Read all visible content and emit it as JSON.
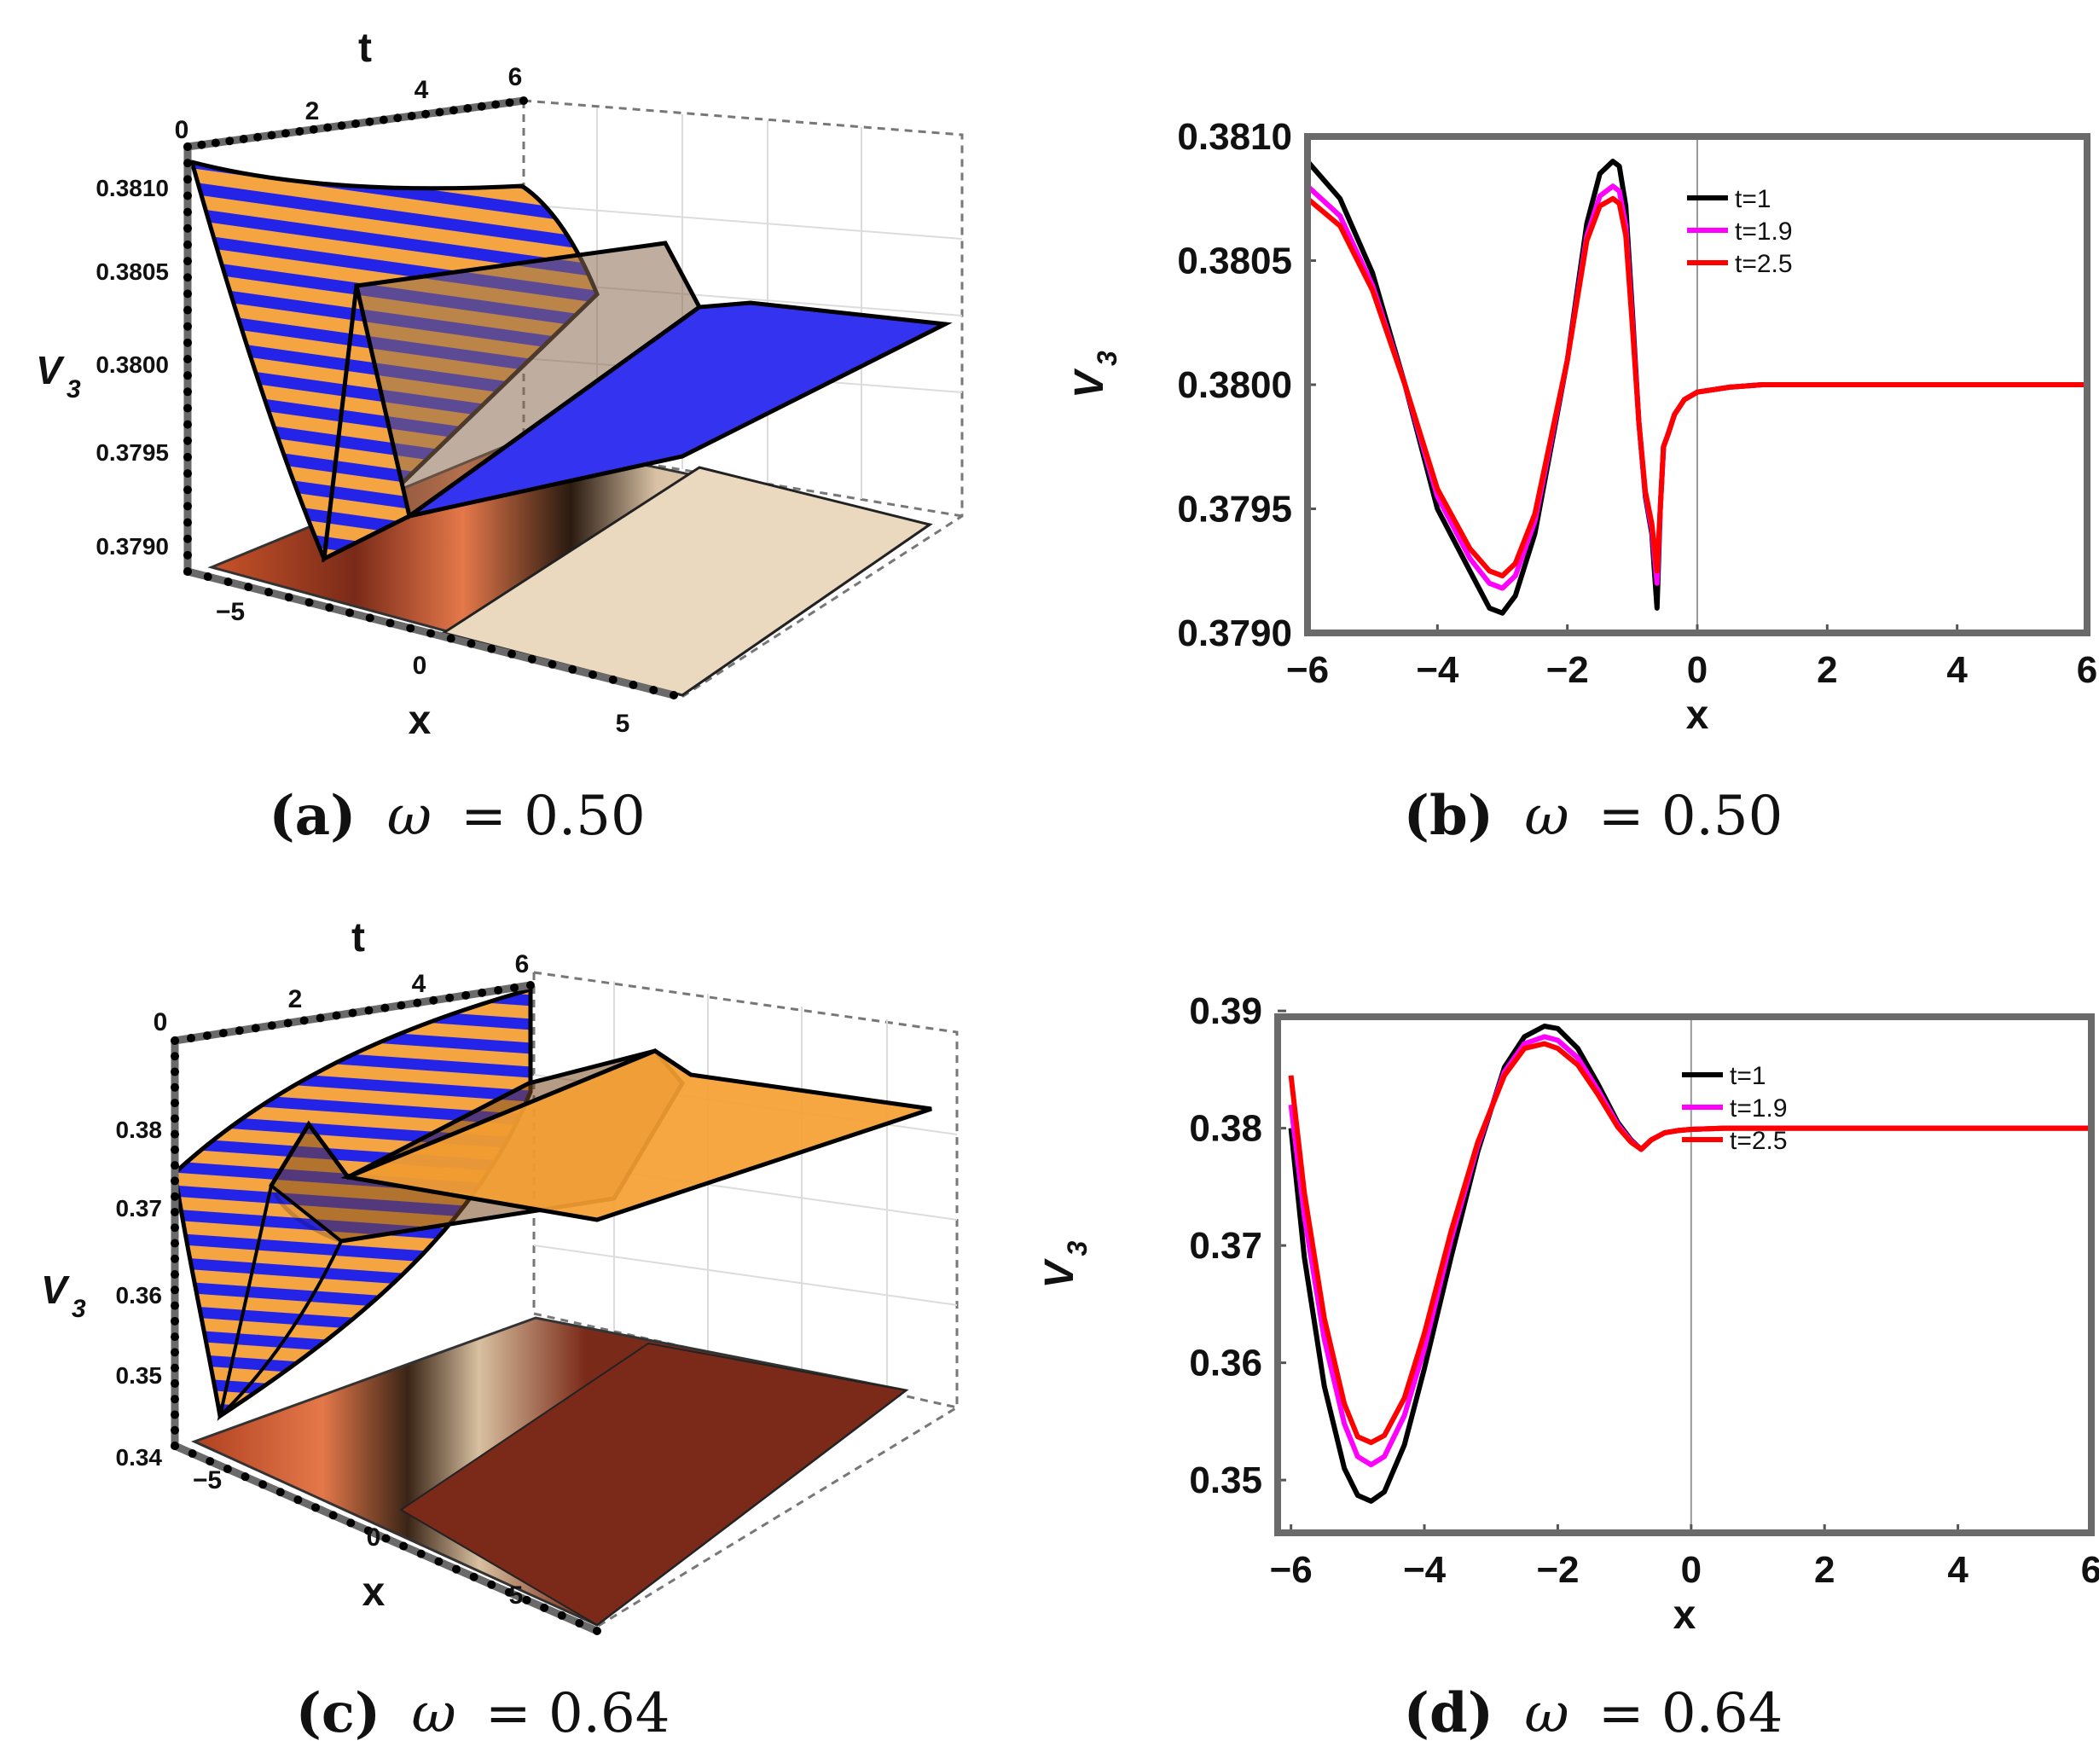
{
  "colors": {
    "t1": "#000000",
    "t19": "#ff00ff",
    "t25": "#ff0000",
    "stripe_orange": "#f5a442",
    "stripe_blue": "#2222ee",
    "frame": "#6a6a6a"
  },
  "captions": {
    "a": {
      "letter": "(a)",
      "omega": "ω",
      "eq": "= 0.50"
    },
    "b": {
      "letter": "(b)",
      "omega": "ω",
      "eq": "= 0.50"
    },
    "c": {
      "letter": "(c)",
      "omega": "ω",
      "eq": "= 0.64"
    },
    "d": {
      "letter": "(d)",
      "omega": "ω",
      "eq": "= 0.64"
    }
  },
  "panel_a": {
    "zlabel": "V",
    "zsub": "3",
    "xlabel": "x",
    "tlabel": "t",
    "zticks": [
      "0.3810",
      "0.3805",
      "0.3800",
      "0.3795",
      "0.3790"
    ],
    "xticks": [
      "−5",
      "0",
      "5"
    ],
    "tticks": [
      "0",
      "2",
      "4",
      "6"
    ]
  },
  "panel_c": {
    "zlabel": "V",
    "zsub": "3",
    "xlabel": "x",
    "tlabel": "t",
    "zticks": [
      "0.38",
      "0.37",
      "0.36",
      "0.35",
      "0.34"
    ],
    "xticks": [
      "−5",
      "0",
      "5"
    ],
    "tticks": [
      "0",
      "2",
      "4",
      "6"
    ]
  },
  "chart_data": [
    {
      "id": "a",
      "type": "surface3d",
      "title": "(a) ω = 0.50",
      "xlabel": "x",
      "ylabel": "t",
      "zlabel": "V3",
      "xlim": [
        -6,
        6
      ],
      "ylim": [
        0,
        6
      ],
      "zlim": [
        0.3788,
        0.3811
      ]
    },
    {
      "id": "b",
      "type": "line",
      "title": "(b) ω = 0.50",
      "xlabel": "x",
      "ylabel": "V3",
      "ysub": "3",
      "xlim": [
        -6,
        6
      ],
      "ylim": [
        0.379,
        0.381
      ],
      "xticks": [
        -6,
        -4,
        -2,
        0,
        2,
        4,
        6
      ],
      "xtick_labels": [
        "−6",
        "−4",
        "−2",
        "0",
        "2",
        "4",
        "6"
      ],
      "yticks": [
        0.379,
        0.3795,
        0.38,
        0.3805,
        0.381
      ],
      "ytick_labels": [
        "0.3790",
        "0.3795",
        "0.3800",
        "0.3805",
        "0.3810"
      ],
      "legend": [
        "t=1",
        "t=1.9",
        "t=2.5"
      ],
      "x": [
        -6,
        -5.5,
        -5,
        -4.5,
        -4,
        -3.5,
        -3.2,
        -3,
        -2.8,
        -2.5,
        -2,
        -1.7,
        -1.5,
        -1.3,
        -1.2,
        -1.1,
        -1.0,
        -0.9,
        -0.8,
        -0.7,
        -0.62,
        -0.57,
        -0.52,
        -0.45,
        -0.35,
        -0.2,
        0,
        0.5,
        1,
        2,
        6
      ],
      "series": [
        {
          "name": "t=1",
          "values": [
            0.3809,
            0.38075,
            0.38045,
            0.38,
            0.3795,
            0.37925,
            0.3791,
            0.37908,
            0.37915,
            0.3794,
            0.3801,
            0.38065,
            0.38085,
            0.3809,
            0.38088,
            0.38072,
            0.3803,
            0.37985,
            0.37955,
            0.3794,
            0.3791,
            0.3795,
            0.37975,
            0.3798,
            0.37988,
            0.37994,
            0.37997,
            0.37999,
            0.38,
            0.38,
            0.38
          ]
        },
        {
          "name": "t=1.9",
          "values": [
            0.3808,
            0.38068,
            0.3804,
            0.38,
            0.37955,
            0.3793,
            0.3792,
            0.37918,
            0.37923,
            0.37945,
            0.3801,
            0.3806,
            0.38076,
            0.3808,
            0.38078,
            0.38064,
            0.38026,
            0.37985,
            0.37956,
            0.37942,
            0.3792,
            0.3795,
            0.37975,
            0.3798,
            0.37988,
            0.37994,
            0.37997,
            0.37999,
            0.38,
            0.38,
            0.38
          ]
        },
        {
          "name": "t=2.5",
          "values": [
            0.38075,
            0.38064,
            0.38038,
            0.38,
            0.37958,
            0.37934,
            0.37925,
            0.37923,
            0.37928,
            0.37948,
            0.3801,
            0.38058,
            0.38072,
            0.38075,
            0.38073,
            0.3806,
            0.38024,
            0.37985,
            0.37957,
            0.37944,
            0.37925,
            0.3795,
            0.37975,
            0.3798,
            0.37988,
            0.37994,
            0.37997,
            0.37999,
            0.38,
            0.38,
            0.38
          ]
        }
      ]
    },
    {
      "id": "c",
      "type": "surface3d",
      "title": "(c) ω = 0.64",
      "xlabel": "x",
      "ylabel": "t",
      "zlabel": "V3",
      "xlim": [
        -6,
        6
      ],
      "ylim": [
        0,
        6
      ],
      "zlim": [
        0.34,
        0.388
      ]
    },
    {
      "id": "d",
      "type": "line",
      "title": "(d) ω = 0.64",
      "xlabel": "x",
      "ylabel": "V3",
      "ysub": "3",
      "xlim": [
        -6.2,
        6
      ],
      "ylim": [
        0.3455,
        0.3895
      ],
      "xticks": [
        -6,
        -4,
        -2,
        0,
        2,
        4,
        6
      ],
      "xtick_labels": [
        "−6",
        "−4",
        "−2",
        "0",
        "2",
        "4",
        "6"
      ],
      "yticks": [
        0.35,
        0.36,
        0.37,
        0.38,
        0.39
      ],
      "ytick_labels": [
        "0.35",
        "0.36",
        "0.37",
        "0.38",
        "0.39"
      ],
      "legend": [
        "t=1",
        "t=1.9",
        "t=2.5"
      ],
      "x": [
        -6,
        -5.8,
        -5.5,
        -5.2,
        -5,
        -4.8,
        -4.6,
        -4.3,
        -4,
        -3.6,
        -3.2,
        -2.8,
        -2.5,
        -2.2,
        -2.0,
        -1.7,
        -1.4,
        -1.1,
        -0.9,
        -0.75,
        -0.6,
        -0.4,
        -0.2,
        0,
        0.5,
        1,
        2,
        6
      ],
      "series": [
        {
          "name": "t=1",
          "values": [
            0.38,
            0.369,
            0.358,
            0.351,
            0.3487,
            0.3482,
            0.349,
            0.353,
            0.3595,
            0.369,
            0.378,
            0.3852,
            0.3878,
            0.3887,
            0.3885,
            0.3868,
            0.3838,
            0.3805,
            0.379,
            0.3782,
            0.379,
            0.3796,
            0.3798,
            0.3799,
            0.38,
            0.38,
            0.38,
            0.38
          ]
        },
        {
          "name": "t=1.9",
          "values": [
            0.382,
            0.3725,
            0.362,
            0.3548,
            0.352,
            0.3513,
            0.352,
            0.3555,
            0.3612,
            0.3705,
            0.3785,
            0.3848,
            0.3872,
            0.3878,
            0.3875,
            0.386,
            0.3833,
            0.3803,
            0.3789,
            0.3782,
            0.379,
            0.3796,
            0.3798,
            0.3799,
            0.38,
            0.38,
            0.38,
            0.38
          ]
        },
        {
          "name": "t=2.5",
          "values": [
            0.3845,
            0.3745,
            0.3638,
            0.3565,
            0.3537,
            0.3532,
            0.3538,
            0.357,
            0.3625,
            0.3712,
            0.3788,
            0.3845,
            0.3868,
            0.3872,
            0.3868,
            0.3854,
            0.3829,
            0.3801,
            0.3788,
            0.3782,
            0.379,
            0.3796,
            0.3798,
            0.3799,
            0.38,
            0.38,
            0.38,
            0.38
          ]
        }
      ]
    }
  ]
}
